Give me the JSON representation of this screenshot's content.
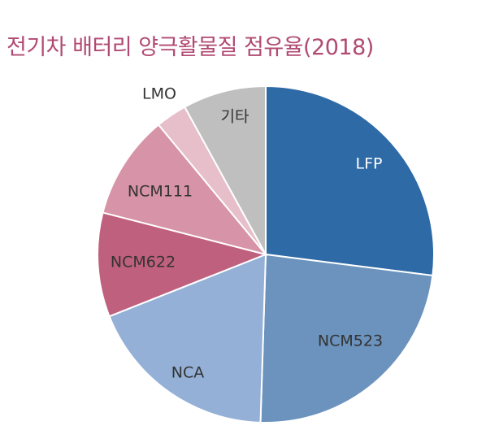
{
  "chart_data": {
    "type": "pie",
    "title": "전기차 배터리 양극활물질 점유율(2018)",
    "slices": [
      {
        "label": "LFP",
        "value": 27.0,
        "color": "#2e6aa6",
        "label_color": "#ffffff"
      },
      {
        "label": "NCM523",
        "value": 23.5,
        "color": "#6b93bd",
        "label_color": "#333333"
      },
      {
        "label": "NCA",
        "value": 18.5,
        "color": "#94b0d6",
        "label_color": "#333333"
      },
      {
        "label": "NCM622",
        "value": 10.0,
        "color": "#c0607f",
        "label_color": "#333333"
      },
      {
        "label": "NCM111",
        "value": 10.0,
        "color": "#d793a7",
        "label_color": "#333333"
      },
      {
        "label": "LMO",
        "value": 3.0,
        "color": "#e6bfcb",
        "label_color": "#333333"
      },
      {
        "label": "기타",
        "value": 8.0,
        "color": "#bfbfbf",
        "label_color": "#333333"
      }
    ],
    "legend": "none",
    "start_angle": "12 o'clock",
    "direction": "clockwise"
  }
}
